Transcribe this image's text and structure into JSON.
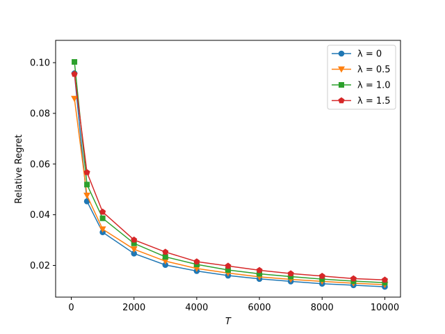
{
  "chart_data": {
    "type": "line",
    "xlabel": "T",
    "ylabel": "Relative Regret",
    "xlim": [
      -500,
      10500
    ],
    "ylim": [
      0.0075,
      0.1088
    ],
    "xticks": [
      0,
      2000,
      4000,
      6000,
      8000,
      10000
    ],
    "yticks": [
      0.02,
      0.04,
      0.06,
      0.08,
      0.1
    ],
    "xtick_labels": [
      "0",
      "2000",
      "4000",
      "6000",
      "8000",
      "10000"
    ],
    "ytick_labels": [
      "0.02",
      "0.04",
      "0.06",
      "0.08",
      "0.10"
    ],
    "grid": false,
    "legend_position": "top-right",
    "x": [
      100,
      500,
      1000,
      2000,
      3000,
      4000,
      5000,
      6000,
      7000,
      8000,
      9000,
      10000
    ],
    "series": [
      {
        "name": "λ = 0",
        "color": "#1f77b4",
        "marker": "circle",
        "values": [
          0.0958,
          0.0453,
          0.0331,
          0.0247,
          0.0202,
          0.0178,
          0.016,
          0.0147,
          0.0137,
          0.0128,
          0.0122,
          0.0116
        ]
      },
      {
        "name": "λ = 0.5",
        "color": "#ff7f0e",
        "marker": "triangle-down",
        "values": [
          0.0858,
          0.0476,
          0.0343,
          0.0264,
          0.0217,
          0.0188,
          0.017,
          0.0155,
          0.0145,
          0.0137,
          0.013,
          0.0124
        ]
      },
      {
        "name": "λ = 1.0",
        "color": "#2ca02c",
        "marker": "square",
        "values": [
          0.1003,
          0.0519,
          0.0386,
          0.0287,
          0.0234,
          0.0204,
          0.0182,
          0.0167,
          0.0156,
          0.0146,
          0.0138,
          0.0132
        ]
      },
      {
        "name": "λ = 1.5",
        "color": "#d62728",
        "marker": "pentagon",
        "values": [
          0.0955,
          0.0567,
          0.0411,
          0.0301,
          0.0253,
          0.0215,
          0.0198,
          0.0181,
          0.0168,
          0.0158,
          0.0148,
          0.0143
        ]
      }
    ]
  }
}
